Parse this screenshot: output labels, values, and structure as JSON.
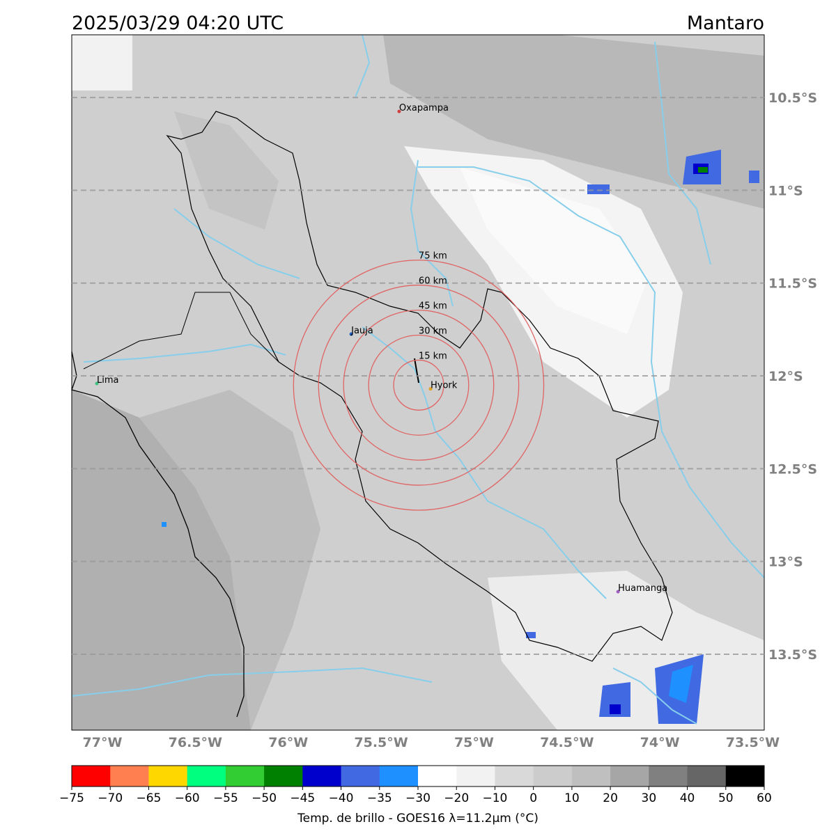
{
  "map": {
    "title": "2025/03/29 04:20 UTC",
    "region": "Mantaro",
    "lon_range": [
      -77.165,
      -73.438
    ],
    "lat_range": [
      -13.909,
      -10.162
    ],
    "lat_ticks": [
      {
        "value": -10.5,
        "label": "10.5°S"
      },
      {
        "value": -11,
        "label": "11°S"
      },
      {
        "value": -11.5,
        "label": "11.5°S"
      },
      {
        "value": -12,
        "label": "12°S"
      },
      {
        "value": -12.5,
        "label": "12.5°S"
      },
      {
        "value": -13,
        "label": "13°S"
      },
      {
        "value": -13.5,
        "label": "13.5°S"
      }
    ],
    "lon_ticks": [
      {
        "value": -77,
        "label": "77°W"
      },
      {
        "value": -76.5,
        "label": "76.5°W"
      },
      {
        "value": -76,
        "label": "76°W"
      },
      {
        "value": -75.5,
        "label": "75.5°W"
      },
      {
        "value": -75,
        "label": "75°W"
      },
      {
        "value": -74.5,
        "label": "74.5°W"
      },
      {
        "value": -74,
        "label": "74°W"
      },
      {
        "value": -73.5,
        "label": "73.5°W"
      }
    ],
    "cities": [
      {
        "name": "Oxapampa",
        "lon": -75.403,
        "lat": -10.575,
        "color": "#d04040"
      },
      {
        "name": "Jauja",
        "lon": -75.661,
        "lat": -11.775,
        "color": "#2060c0"
      },
      {
        "name": "Lima",
        "lon": -77.03,
        "lat": -12.041,
        "color": "#40c080"
      },
      {
        "name": "Hyork",
        "lon": -75.234,
        "lat": -12.07,
        "color": "#e0a020"
      },
      {
        "name": "Huamanga",
        "lon": -74.225,
        "lat": -13.163,
        "color": "#a060c0"
      }
    ],
    "rings": {
      "center_lon": -75.298,
      "center_lat": -12.05,
      "color": "#e06464",
      "radii": [
        {
          "value": 15,
          "label": "15 km"
        },
        {
          "value": 30,
          "label": "30 km"
        },
        {
          "value": 45,
          "label": "45 km"
        },
        {
          "value": 60,
          "label": "60 km"
        },
        {
          "value": 75,
          "label": "75 km"
        }
      ]
    }
  },
  "colorbar": {
    "label": "Temp. de brillo - GOES16 λ=11.2μm (°C)",
    "ticks": [
      {
        "value": -75,
        "label": "−75"
      },
      {
        "value": -70,
        "label": "−70"
      },
      {
        "value": -65,
        "label": "−65"
      },
      {
        "value": -60,
        "label": "−60"
      },
      {
        "value": -55,
        "label": "−55"
      },
      {
        "value": -50,
        "label": "−50"
      },
      {
        "value": -45,
        "label": "−45"
      },
      {
        "value": -40,
        "label": "−40"
      },
      {
        "value": -35,
        "label": "−35"
      },
      {
        "value": -30,
        "label": "−30"
      },
      {
        "value": -20,
        "label": "−20"
      },
      {
        "value": -10,
        "label": "−10"
      },
      0,
      10,
      20,
      30,
      40,
      50,
      60
    ],
    "colors": [
      "#ff0000",
      "#ff7f50",
      "#ffd700",
      "#00ff7f",
      "#32cd32",
      "#008000",
      "#0000cd",
      "#4169e1",
      "#1e90ff",
      "#ffffff",
      "#f2f2f2",
      "#d9d9d9",
      "#cccccc",
      "#bfbfbf",
      "#a6a6a6",
      "#808080",
      "#666666",
      "#000000"
    ]
  }
}
